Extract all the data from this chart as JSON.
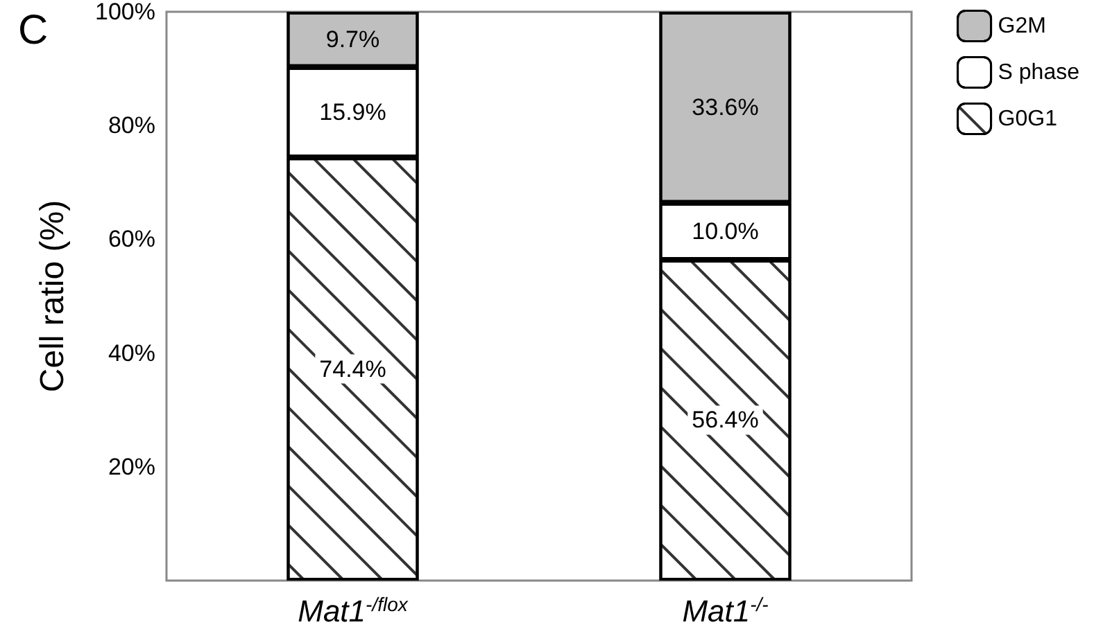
{
  "chart_data": {
    "type": "bar",
    "title": "C",
    "ylabel": "Cell ratio (%)",
    "stacked": true,
    "categories": [
      "Mat1$^{-/flox}$",
      "Mat1$^{-/-}$"
    ],
    "series": [
      {
        "name": "G0G1",
        "color": "#ffffff",
        "values": [
          74.4,
          56.4
        ],
        "value_labels": [
          "74.4%",
          "56.4%"
        ]
      },
      {
        "name": "S phase",
        "color": "#ffffff",
        "values": [
          15.9,
          10.0
        ],
        "value_labels": [
          "15.9%",
          "10.0%"
        ]
      },
      {
        "name": "G2M",
        "color": "#bfbfbf",
        "values": [
          9.7,
          33.6
        ],
        "value_labels": [
          "9.7%",
          "33.6%"
        ]
      }
    ],
    "ylim": [
      0,
      100
    ],
    "yticks": [
      {
        "value": 20,
        "label": "20%"
      },
      {
        "value": 40,
        "label": "40%"
      },
      {
        "value": 60,
        "label": "60%"
      },
      {
        "value": 80,
        "label": "80%"
      },
      {
        "value": 100,
        "label": "100%"
      }
    ],
    "grid": false,
    "legend": "top right"
  }
}
